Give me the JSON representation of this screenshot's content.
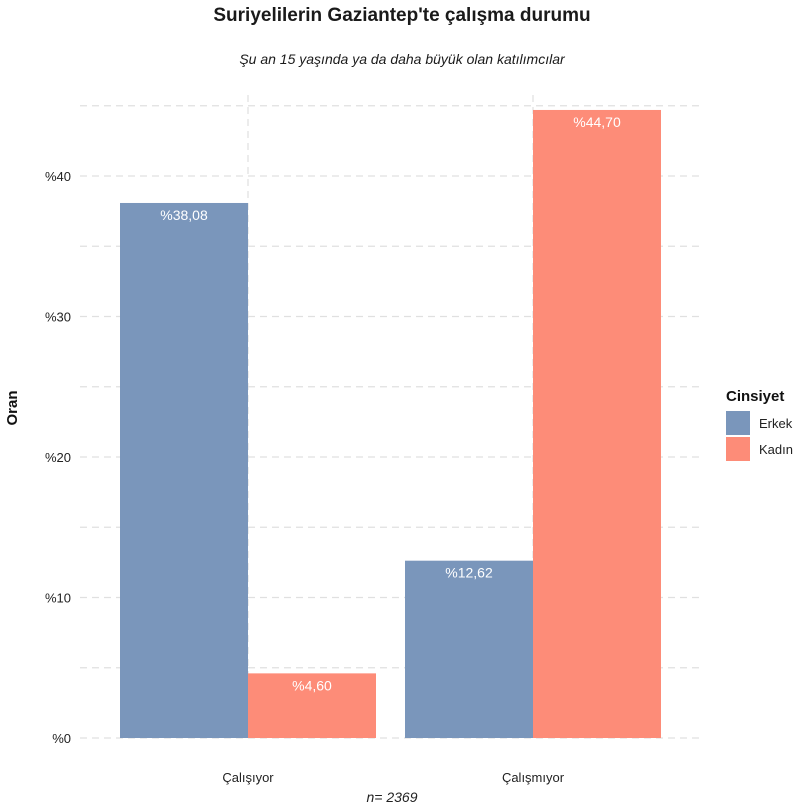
{
  "chart_data": {
    "type": "bar",
    "title": "Suriyelilerin Gaziantep'te çalışma durumu",
    "subtitle": "Şu an 15 yaşında ya da daha büyük olan katılımcılar",
    "ylabel": "Oran",
    "xlabel": "",
    "caption": "n=  2369",
    "categories": [
      "Çalışıyor",
      "Çalışmıyor"
    ],
    "series": [
      {
        "name": "Erkek",
        "color": "#7a96bb",
        "values": [
          38.08,
          12.62
        ],
        "labels": [
          "%38,08",
          "%12,62"
        ]
      },
      {
        "name": "Kadın",
        "color": "#fd8c78",
        "values": [
          4.6,
          44.7
        ],
        "labels": [
          "%4,60",
          "%44,70"
        ]
      }
    ],
    "ylim": [
      0,
      47
    ],
    "yticks": [
      0,
      10,
      20,
      30,
      40
    ],
    "ytick_labels": [
      "%0",
      "%10",
      "%20",
      "%30",
      "%40"
    ],
    "legend_title": "Cinsiyet",
    "legend_position": "right",
    "grid": true
  }
}
